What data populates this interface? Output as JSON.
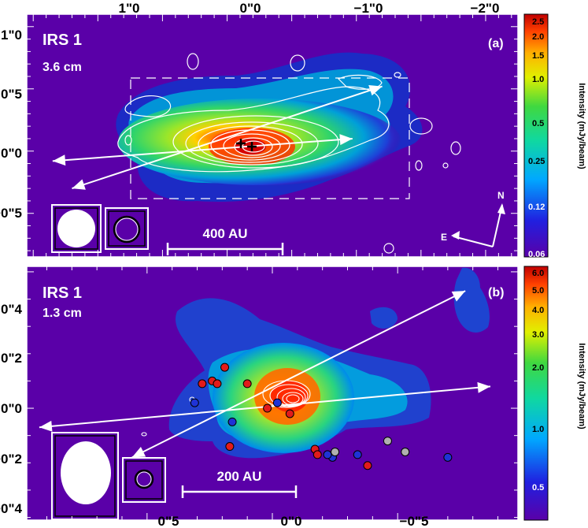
{
  "colors": {
    "background": "#5a00a8",
    "frame": "#ffffff",
    "contour": "#ffffff",
    "vector": "#ffffff",
    "marker_red": "#e21b1b",
    "marker_blue": "#1f33d6",
    "marker_gray": "#b0b0b0"
  },
  "chart_data": [
    {
      "panel": "(a)",
      "type": "heatmap",
      "title": "IRS 1",
      "subtitle": "3.6 cm",
      "x_ticks": [
        "1\"0",
        "0\"0",
        "−1\"0",
        "−2\"0"
      ],
      "y_ticks": [
        "1\"0",
        "0\"5",
        "0\"0",
        "−0\"5"
      ],
      "xlim": [
        1.55,
        -2.25
      ],
      "ylim": [
        -0.85,
        1.1
      ],
      "colorbar": {
        "label": "Intensity (mJy/beam)",
        "ticks": [
          "2.5",
          "2.0",
          "1.5",
          "1.0",
          "0.5",
          "0.25",
          "0.12",
          "0.06"
        ],
        "scale": "log",
        "range": [
          0.05,
          2.6
        ]
      },
      "scale_bar_label": "400 AU",
      "compass": {
        "north": "N",
        "east": "E"
      },
      "peak_positions": [
        {
          "x": 0.15,
          "y": 0.06
        },
        {
          "x": 0.05,
          "y": 0.02
        }
      ],
      "outflow_axes": [
        {
          "from": [
            1.35,
            -0.08
          ],
          "to": [
            -0.97,
            0.1
          ]
        },
        {
          "from": [
            1.2,
            -0.3
          ],
          "to": [
            -1.2,
            0.52
          ]
        }
      ]
    },
    {
      "panel": "(b)",
      "type": "heatmap",
      "title": "IRS 1",
      "subtitle": "1.3 cm",
      "x_ticks": [
        "0\"5",
        "0\"0",
        "−0\"5"
      ],
      "y_ticks": [
        "0\"4",
        "0\"2",
        "0\"0",
        "−0\"2",
        "−0\"4"
      ],
      "xlim": [
        0.98,
        -0.98
      ],
      "ylim": [
        -0.41,
        0.52
      ],
      "colorbar": {
        "label": "Intensity (mJy/beam)",
        "ticks": [
          "6.0",
          "5.0",
          "4.0",
          "3.0",
          "2.0",
          "1.0",
          "0.5"
        ],
        "scale": "log",
        "range": [
          0.4,
          7.0
        ]
      },
      "scale_bar_label": "200 AU",
      "outflow_axes": [
        {
          "from": [
            0.93,
            -0.07
          ],
          "to": [
            -0.87,
            0.08
          ]
        },
        {
          "from": [
            0.56,
            -0.18
          ],
          "to": [
            -0.77,
            0.43
          ]
        }
      ],
      "maser_spots": [
        {
          "x": 0.19,
          "y": 0.15,
          "color": "red"
        },
        {
          "x": 0.24,
          "y": 0.1,
          "color": "red"
        },
        {
          "x": 0.22,
          "y": 0.09,
          "color": "red"
        },
        {
          "x": 0.28,
          "y": 0.09,
          "color": "red"
        },
        {
          "x": 0.1,
          "y": 0.09,
          "color": "red"
        },
        {
          "x": -0.07,
          "y": -0.02,
          "color": "red"
        },
        {
          "x": 0.02,
          "y": 0.0,
          "color": "red"
        },
        {
          "x": 0.17,
          "y": -0.14,
          "color": "red"
        },
        {
          "x": -0.17,
          "y": -0.15,
          "color": "red"
        },
        {
          "x": -0.18,
          "y": -0.17,
          "color": "red"
        },
        {
          "x": -0.38,
          "y": -0.21,
          "color": "red"
        },
        {
          "x": -0.02,
          "y": 0.02,
          "color": "blue"
        },
        {
          "x": 0.31,
          "y": 0.02,
          "color": "blue"
        },
        {
          "x": 0.16,
          "y": -0.05,
          "color": "blue"
        },
        {
          "x": -0.24,
          "y": -0.18,
          "color": "blue"
        },
        {
          "x": -0.34,
          "y": -0.17,
          "color": "blue"
        },
        {
          "x": -0.22,
          "y": -0.17,
          "color": "blue"
        },
        {
          "x": -0.7,
          "y": -0.18,
          "color": "blue"
        },
        {
          "x": -0.46,
          "y": -0.12,
          "color": "gray"
        },
        {
          "x": -0.25,
          "y": -0.16,
          "color": "gray"
        },
        {
          "x": -0.53,
          "y": -0.16,
          "color": "gray"
        }
      ]
    }
  ]
}
